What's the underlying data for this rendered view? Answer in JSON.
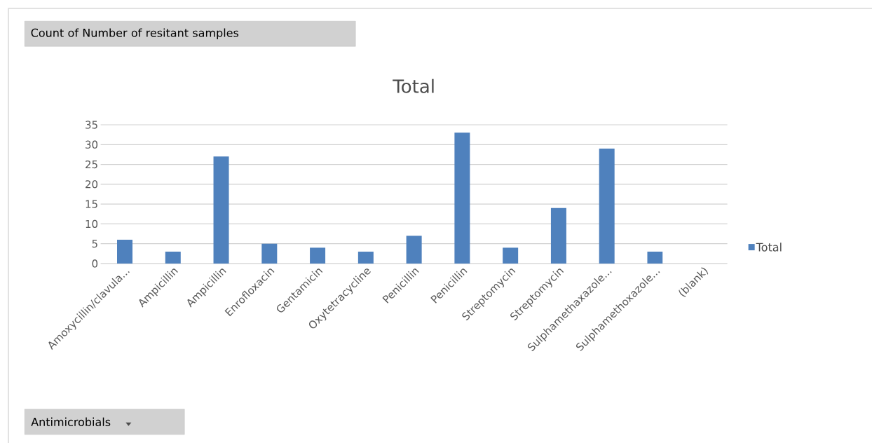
{
  "chart_data": {
    "type": "bar",
    "title": "Total",
    "categories": [
      "Amoxycillin/clavula...",
      "Ampicillin",
      "Ampicillin",
      "Enrofloxacin",
      "Gentamicin",
      "Oxytetracycline",
      "Penicillin",
      "Penicillin",
      "Streptomycin",
      "Streptomycin",
      "Sulphamethaxazole...",
      "Sulphamethoxazole...",
      "(blank)"
    ],
    "series": [
      {
        "name": "Total",
        "color": "#4f81bd",
        "values": [
          6,
          3,
          27,
          5,
          4,
          3,
          7,
          33,
          4,
          14,
          29,
          3,
          null
        ]
      }
    ],
    "annotations": [
      "Count of Number of resitant samples",
      "Antimicrobials"
    ],
    "ylim": [
      0,
      35
    ],
    "yticks": [
      0,
      5,
      10,
      15,
      20,
      25,
      30,
      35
    ],
    "grid": "y",
    "legend": "right"
  }
}
